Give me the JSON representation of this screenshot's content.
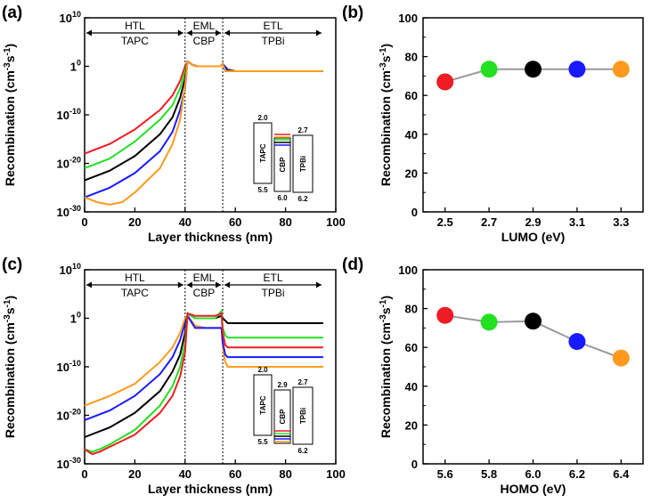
{
  "figure": {
    "panel_labels": [
      "(a)",
      "(b)",
      "(c)",
      "(d)"
    ],
    "colors": {
      "red": "#ee1c24",
      "green": "#22e022",
      "black": "#000000",
      "blue": "#1a1aff",
      "orange": "#ff9a1e",
      "gray": "#9a9a9a"
    }
  },
  "chart_data": [
    {
      "panel": "(a)",
      "type": "line",
      "xlabel": "Layer thickness (nm)",
      "ylabel_main": "Recombination (cm",
      "ylabel_sup1": "-3",
      "ylabel_mid": "s",
      "ylabel_sup2": "-1",
      "ylabel_end": ")",
      "yscale": "log",
      "xlim": [
        0,
        100
      ],
      "ylim_exp": [
        -30,
        10
      ],
      "xticks": [
        0,
        20,
        40,
        60,
        80,
        100
      ],
      "yticks": [
        {
          "base": "10",
          "exp": "-30",
          "v": -30
        },
        {
          "base": "10",
          "exp": "-20",
          "v": -20
        },
        {
          "base": "10",
          "exp": "-10",
          "v": -10
        },
        {
          "base": "1",
          "exp": "0",
          "v": 0
        },
        {
          "base": "10",
          "exp": "10",
          "v": 10
        }
      ],
      "regions": [
        {
          "name": "HTL",
          "material": "TAPC",
          "x0": 0,
          "x1": 40
        },
        {
          "name": "EML",
          "material": "CBP",
          "x0": 40,
          "x1": 55
        },
        {
          "name": "ETL",
          "material": "TPBi",
          "x0": 55,
          "x1": 95
        }
      ],
      "series": [
        {
          "color": "red",
          "x": [
            0,
            10,
            20,
            30,
            35,
            38,
            40,
            41,
            43,
            45,
            50,
            54,
            55,
            57,
            60,
            62,
            95
          ],
          "y_exp": [
            -18,
            -16,
            -13,
            -9,
            -6,
            -3,
            0,
            1,
            0.3,
            0,
            0,
            0,
            0.5,
            -0.6,
            -1,
            -1,
            -1
          ]
        },
        {
          "color": "green",
          "x": [
            0,
            10,
            20,
            30,
            35,
            38,
            40,
            41,
            43,
            45,
            50,
            54,
            55,
            57,
            60,
            62,
            95
          ],
          "y_exp": [
            -21,
            -19,
            -15.5,
            -11,
            -8,
            -4.5,
            -1,
            1,
            0.3,
            0,
            0,
            0,
            0.5,
            -0.7,
            -1,
            -1,
            -1
          ]
        },
        {
          "color": "black",
          "x": [
            0,
            10,
            20,
            30,
            35,
            38,
            40,
            41,
            43,
            45,
            50,
            54,
            55,
            57,
            60,
            62,
            95
          ],
          "y_exp": [
            -23.5,
            -21.5,
            -18.5,
            -14,
            -10.5,
            -6.5,
            -2.5,
            1,
            0.3,
            0,
            0,
            0,
            0.5,
            -0.8,
            -1,
            -1,
            -1
          ]
        },
        {
          "color": "blue",
          "x": [
            0,
            10,
            20,
            30,
            35,
            38,
            40,
            41,
            43,
            45,
            50,
            54,
            55,
            57,
            60,
            62,
            95
          ],
          "y_exp": [
            -27,
            -25,
            -22,
            -17.5,
            -13.5,
            -9,
            -4.5,
            1,
            0.3,
            0,
            0,
            0,
            0.5,
            -0.9,
            -1,
            -1,
            -1
          ]
        },
        {
          "color": "orange",
          "x": [
            0,
            5,
            10,
            15,
            20,
            30,
            35,
            38,
            40,
            41,
            43,
            45,
            50,
            54,
            55,
            56,
            57,
            95
          ],
          "y_exp": [
            -27,
            -28,
            -28.5,
            -28,
            -26,
            -21,
            -16,
            -11,
            -4,
            1,
            0.3,
            0,
            0,
            0,
            0.5,
            -1,
            -1,
            -1
          ]
        }
      ],
      "inset": {
        "boxes": [
          {
            "label": "TAPC",
            "top": "2.0",
            "bottom": "5.5"
          },
          {
            "label": "CBP",
            "top": "",
            "bottom": "6.0"
          },
          {
            "label": "TPBi",
            "top": "2.7",
            "bottom": "6.2"
          }
        ],
        "variable_line_colors": [
          "red",
          "orange",
          "green",
          "black",
          "blue"
        ]
      }
    },
    {
      "panel": "(b)",
      "type": "scatter",
      "xlabel": "LUMO (eV)",
      "ylabel_main": "Recombination (cm",
      "ylabel_sup1": "-3",
      "ylabel_mid": "s",
      "ylabel_sup2": "-1",
      "ylabel_end": ")",
      "x": [
        2.5,
        2.7,
        2.9,
        3.1,
        3.3
      ],
      "y": [
        67,
        73.5,
        73.5,
        73.5,
        73.5
      ],
      "point_colors": [
        "red",
        "green",
        "black",
        "blue",
        "orange"
      ],
      "xlim": [
        2.4,
        3.4
      ],
      "ylim": [
        0,
        100
      ],
      "xticks": [
        "2.5",
        "2.7",
        "2.9",
        "3.1",
        "3.3"
      ],
      "yticks": [
        "0",
        "20",
        "40",
        "60",
        "80",
        "100"
      ]
    },
    {
      "panel": "(c)",
      "type": "line",
      "xlabel": "Layer thickness (nm)",
      "ylabel_main": "Recombination (cm",
      "ylabel_sup1": "-3",
      "ylabel_mid": "s",
      "ylabel_sup2": "-1",
      "ylabel_end": ")",
      "yscale": "log",
      "xlim": [
        0,
        100
      ],
      "ylim_exp": [
        -30,
        10
      ],
      "xticks": [
        0,
        20,
        40,
        60,
        80,
        100
      ],
      "yticks": [
        {
          "base": "10",
          "exp": "-30",
          "v": -30
        },
        {
          "base": "10",
          "exp": "-20",
          "v": -20
        },
        {
          "base": "10",
          "exp": "-10",
          "v": -10
        },
        {
          "base": "1",
          "exp": "0",
          "v": 0
        },
        {
          "base": "10",
          "exp": "10",
          "v": 10
        }
      ],
      "regions": [
        {
          "name": "HTL",
          "material": "TAPC",
          "x0": 0,
          "x1": 40
        },
        {
          "name": "EML",
          "material": "CBP",
          "x0": 40,
          "x1": 55
        },
        {
          "name": "ETL",
          "material": "TPBi",
          "x0": 55,
          "x1": 95
        }
      ],
      "series": [
        {
          "color": "orange",
          "x": [
            0,
            10,
            20,
            30,
            35,
            38,
            40,
            41,
            44,
            48,
            52,
            54.5,
            55,
            56,
            57,
            95
          ],
          "y_exp": [
            -18,
            -16,
            -13.5,
            -9,
            -6,
            -3,
            0,
            0.5,
            -1.5,
            -2,
            -2,
            -2,
            -6,
            -9,
            -10,
            -10
          ]
        },
        {
          "color": "blue",
          "x": [
            0,
            10,
            20,
            30,
            35,
            38,
            40,
            41,
            44,
            48,
            52,
            54.5,
            55,
            56,
            57,
            95
          ],
          "y_exp": [
            -21,
            -19,
            -16,
            -11.5,
            -8,
            -4.5,
            -1,
            0.5,
            -2,
            -2,
            -2,
            -2,
            -5,
            -7.5,
            -8,
            -8
          ]
        },
        {
          "color": "black",
          "x": [
            0,
            10,
            20,
            30,
            35,
            38,
            40,
            41,
            44,
            48,
            52,
            54.5,
            55,
            56,
            57,
            95
          ],
          "y_exp": [
            -24.5,
            -22.5,
            -19.5,
            -15,
            -11,
            -7.5,
            -3,
            1,
            0,
            0,
            0,
            0.5,
            0,
            -0.5,
            -1,
            -1
          ]
        },
        {
          "color": "green",
          "x": [
            0,
            3,
            6,
            10,
            20,
            30,
            35,
            38,
            40,
            41,
            44,
            48,
            52,
            54.5,
            55,
            56,
            57,
            95
          ],
          "y_exp": [
            -27,
            -27.5,
            -27,
            -26,
            -23,
            -18,
            -14,
            -10,
            -5,
            1,
            0,
            0,
            0,
            1.5,
            -2,
            -3.5,
            -4,
            -4
          ]
        },
        {
          "color": "red",
          "x": [
            0,
            3,
            6,
            10,
            20,
            30,
            35,
            38,
            40,
            41,
            44,
            48,
            52,
            54.5,
            55,
            56,
            57,
            95
          ],
          "y_exp": [
            -27,
            -28,
            -27.5,
            -26.5,
            -24,
            -19.5,
            -16,
            -12,
            -7,
            1,
            0.5,
            0.5,
            0.5,
            1,
            -3,
            -5.5,
            -6,
            -6
          ]
        }
      ],
      "inset": {
        "boxes": [
          {
            "label": "TAPC",
            "top": "2.0",
            "bottom": "5.5"
          },
          {
            "label": "CBP",
            "top": "2.9",
            "bottom": ""
          },
          {
            "label": "TPBi",
            "top": "2.7",
            "bottom": "6.2"
          }
        ],
        "variable_line_colors": [
          "red",
          "green",
          "black",
          "blue",
          "orange"
        ]
      }
    },
    {
      "panel": "(d)",
      "type": "scatter",
      "xlabel": "HOMO (eV)",
      "ylabel_main": "Recombination (cm",
      "ylabel_sup1": "-3",
      "ylabel_mid": "s",
      "ylabel_sup2": "-1",
      "ylabel_end": ")",
      "x": [
        5.6,
        5.8,
        6.0,
        6.2,
        6.4
      ],
      "y": [
        76.5,
        73,
        73.5,
        63,
        54.5
      ],
      "point_colors": [
        "red",
        "green",
        "black",
        "blue",
        "orange"
      ],
      "xlim": [
        5.5,
        6.5
      ],
      "ylim": [
        0,
        100
      ],
      "xticks": [
        "5.6",
        "5.8",
        "6.0",
        "6.2",
        "6.4"
      ],
      "yticks": [
        "0",
        "20",
        "40",
        "60",
        "80",
        "100"
      ]
    }
  ]
}
